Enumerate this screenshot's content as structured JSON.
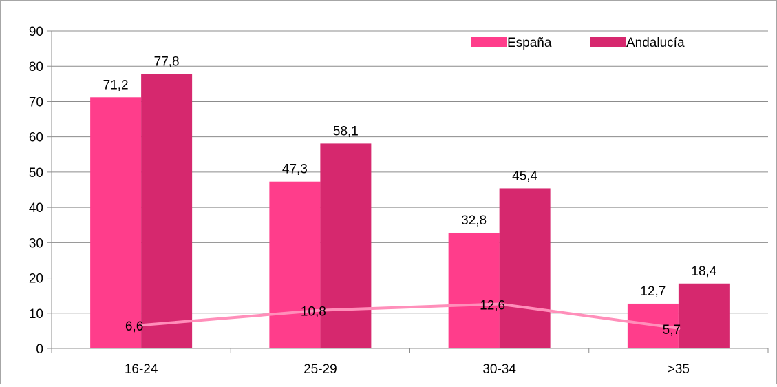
{
  "chart_data": {
    "type": "bar",
    "title": "",
    "xlabel": "",
    "ylabel": "",
    "categories": [
      "16-24",
      "25-29",
      "30-34",
      ">35"
    ],
    "ylim": [
      0,
      90
    ],
    "yticks": [
      0,
      10,
      20,
      30,
      40,
      50,
      60,
      70,
      80,
      90
    ],
    "grid": true,
    "legend_position": "top-right",
    "series": [
      {
        "name": "España",
        "type": "bar",
        "values": [
          71.2,
          47.3,
          32.8,
          12.7
        ],
        "labels": [
          "71,2",
          "47,3",
          "32,8",
          "12,7"
        ],
        "color": "#ff3d8b"
      },
      {
        "name": "Andalucía",
        "type": "bar",
        "values": [
          77.8,
          58.1,
          45.4,
          18.4
        ],
        "labels": [
          "77,8",
          "58,1",
          "45,4",
          "18,4"
        ],
        "color": "#d6286e"
      },
      {
        "type": "line",
        "values": [
          6.6,
          10.8,
          12.6,
          5.7
        ],
        "labels": [
          "6,6",
          "10,8",
          "12,6",
          "5,7"
        ],
        "color": "#ff8fba"
      }
    ]
  }
}
